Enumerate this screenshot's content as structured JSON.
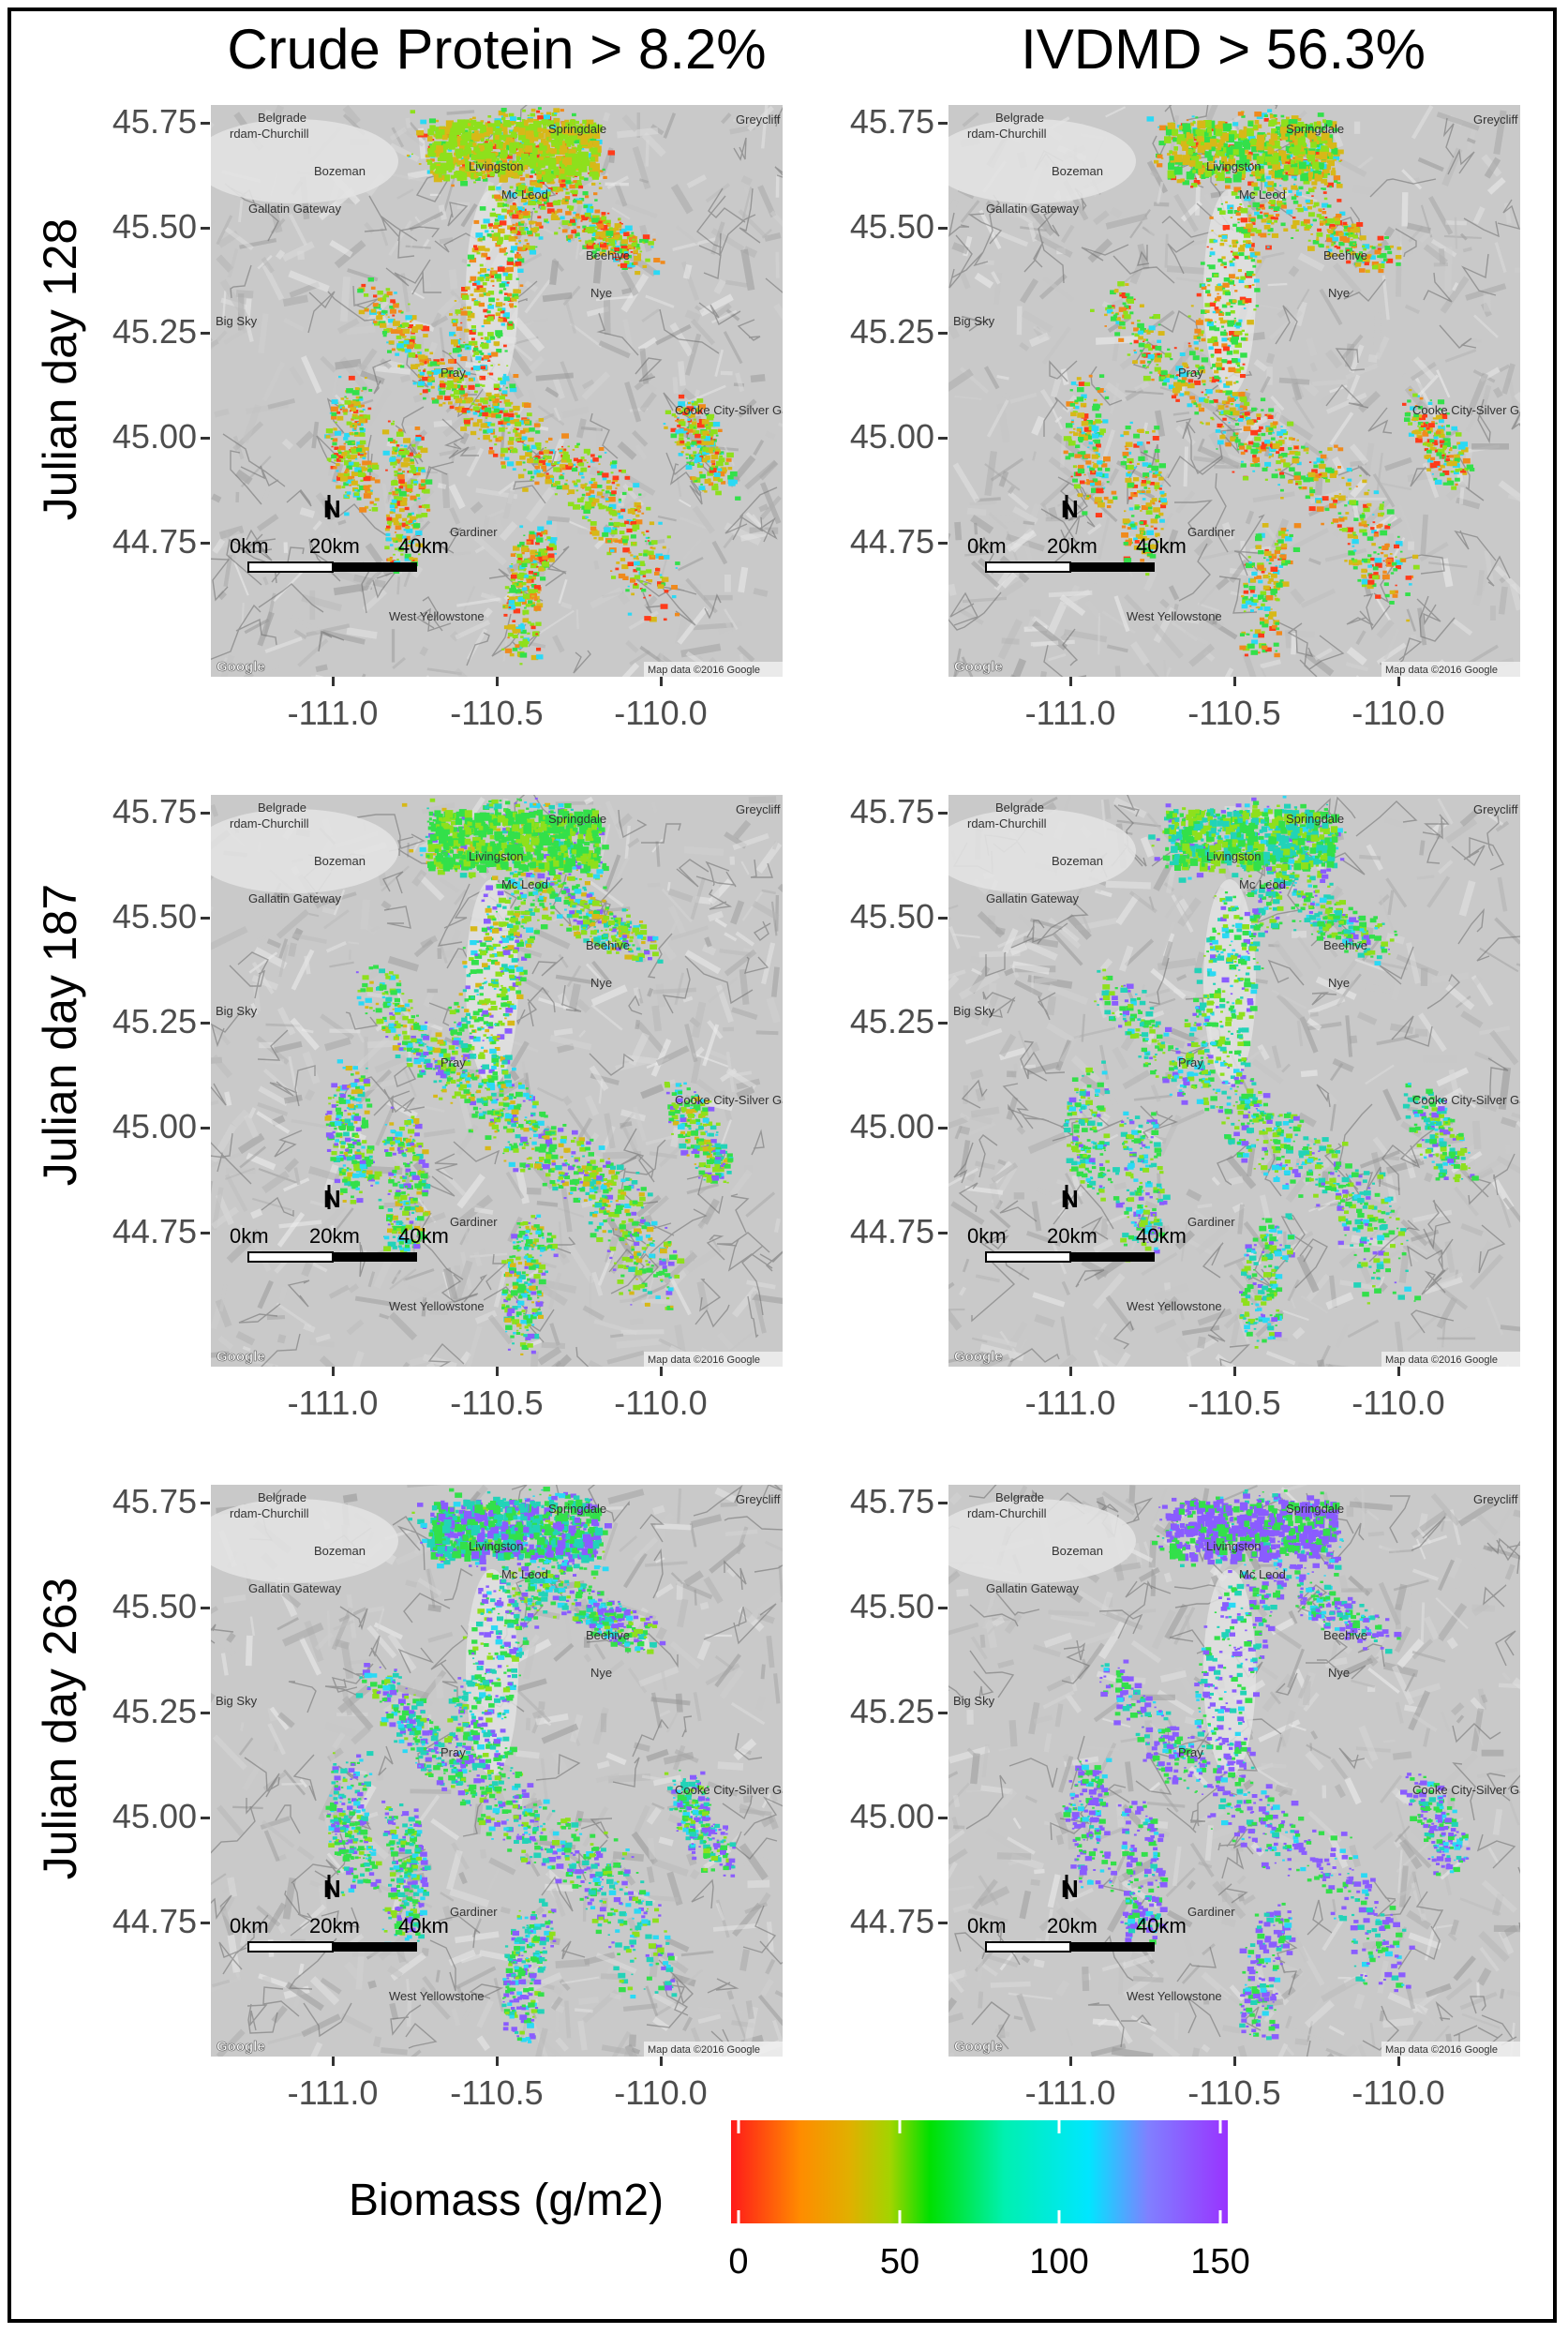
{
  "columns": [
    "Crude Protein > 8.2%",
    "IVDMD > 56.3%"
  ],
  "rows": [
    "Julian day 128",
    "Julian day 187",
    "Julian day 263"
  ],
  "axes": {
    "y_ticks": [
      "45.75",
      "45.50",
      "45.25",
      "45.00",
      "44.75"
    ],
    "x_ticks": [
      "-111.0",
      "-110.5",
      "-110.0"
    ]
  },
  "map_labels": {
    "places": [
      "Belgrade",
      "rdam-Churchill",
      "Bozeman",
      "Gallatin Gateway",
      "Big Sky",
      "Greycliff",
      "Springdale",
      "Mc Leod",
      "Beehive",
      "Nye",
      "Livingston",
      "Pray",
      "Gardiner",
      "West Yellowstone",
      "Cooke City-Silver Gate"
    ],
    "scale": [
      "0km",
      "20km",
      "40km"
    ],
    "north": "N",
    "attribution": "Map data ©2016 Google",
    "brand": "Google"
  },
  "legend": {
    "title": "Biomass (g/m2)",
    "ticks": [
      "0",
      "50",
      "100",
      "150"
    ],
    "min": 0,
    "max": 155,
    "colors": [
      "#ff1a1a",
      "#ff8c00",
      "#a3d400",
      "#00e000",
      "#00f0b0",
      "#00e6ff",
      "#8080ff",
      "#9933ff"
    ]
  },
  "palette": {
    "red": "#ff3b1a",
    "orange": "#f08a1c",
    "yellow": "#d7b818",
    "lime": "#8ee01c",
    "green": "#33e04a",
    "teal": "#22d3b8",
    "cyan": "#2ad9f5",
    "violet": "#8a5cff"
  }
}
